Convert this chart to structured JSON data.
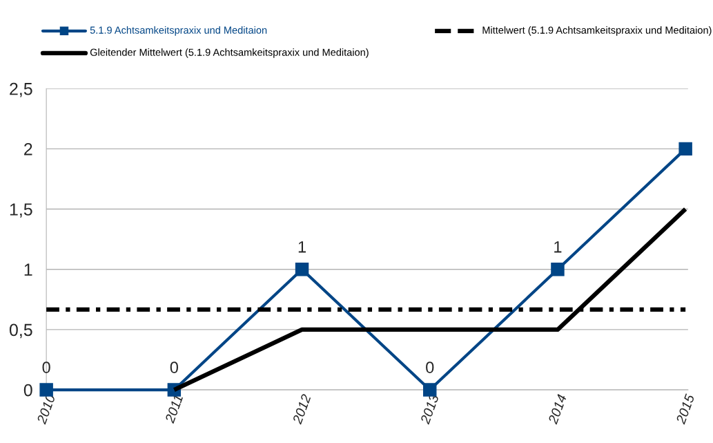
{
  "chart_data": {
    "type": "line",
    "categories": [
      "2010",
      "2011",
      "2012",
      "2013",
      "2014",
      "2015"
    ],
    "series": [
      {
        "name": "5.1.9 Achtsamkeitspraxix und Meditaion",
        "color": "#004586",
        "values": [
          0,
          0,
          1,
          0,
          1,
          2
        ],
        "marker": "square",
        "value_labels": [
          "0",
          "0",
          "1",
          "0",
          "1",
          null
        ]
      },
      {
        "name": "Mittelwert (5.1.9 Achtsamkeitspraxix und Meditaion)",
        "color": "#000000",
        "values": [
          0.667,
          0.667,
          0.667,
          0.667,
          0.667,
          0.667
        ],
        "line_style": "dashed"
      },
      {
        "name": "Gleitender Mittelwert (5.1.9 Achtsamkeitspraxix und Meditaion)",
        "color": "#000000",
        "values": [
          null,
          0,
          0.5,
          0.5,
          0.5,
          1.5
        ]
      }
    ],
    "ylim": [
      0,
      2.5
    ],
    "yticks": [
      0,
      {
        "value": 0.5,
        "label": "0,5"
      },
      1,
      {
        "value": 1.5,
        "label": "1,5"
      },
      2,
      {
        "value": 2.5,
        "label": "2,5"
      }
    ],
    "grid": true,
    "legend": "top"
  }
}
